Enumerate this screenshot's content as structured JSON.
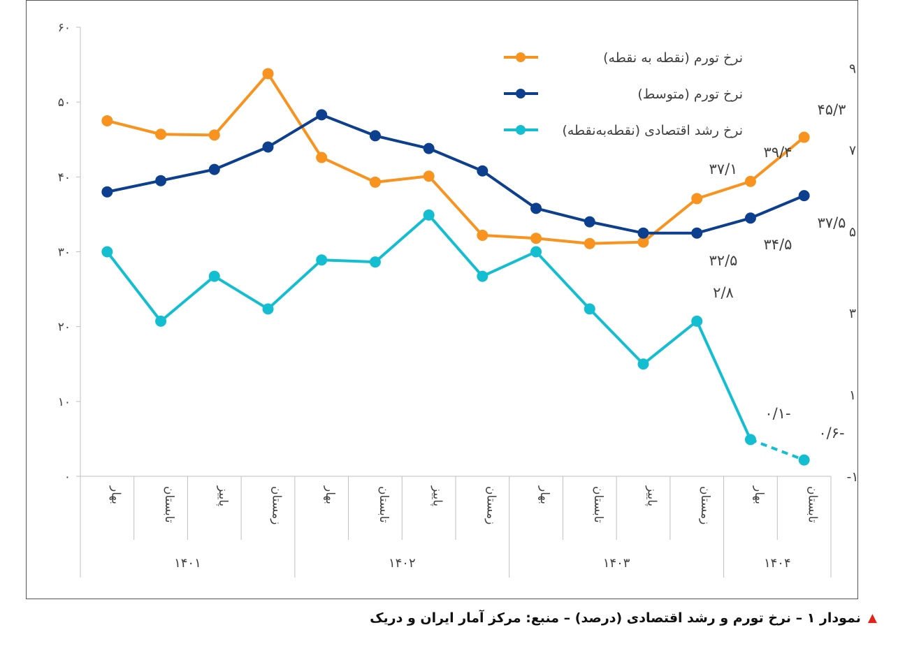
{
  "caption": "نمودار ۱ – نرخ تورم و رشد اقتصادی (درصد) – منبع: مرکز آمار ایران و دریک",
  "caption_marker": "▲",
  "chart_data": {
    "type": "line",
    "title": "",
    "categories": [
      "بهار",
      "تابستان",
      "پاییز",
      "زمستان",
      "بهار",
      "تابستان",
      "پاییز",
      "زمستان",
      "بهار",
      "تابستان",
      "پاییز",
      "زمستان",
      "بهار",
      "تابستان"
    ],
    "groups": [
      {
        "label": "۱۴۰۱",
        "start": 0,
        "end": 3
      },
      {
        "label": "۱۴۰۲",
        "start": 4,
        "end": 7
      },
      {
        "label": "۱۴۰۳",
        "start": 8,
        "end": 11
      },
      {
        "label": "۱۴۰۴",
        "start": 12,
        "end": 13
      }
    ],
    "left_axis": {
      "min": 0,
      "max": 60,
      "ticks": [
        "۰",
        "۱۰",
        "۲۰",
        "۳۰",
        "۴۰",
        "۵۰",
        "۶۰"
      ]
    },
    "right_axis": {
      "min": -1,
      "max": 10,
      "ticks": [
        "-۱",
        "۱",
        "۳",
        "۵",
        "۷",
        "۹"
      ],
      "tick_values": [
        -1,
        1,
        3,
        5,
        7,
        9
      ]
    },
    "series": [
      {
        "name": "نرخ تورم (نقطه به نقطه)",
        "color": "#f7931e",
        "axis": "left",
        "values": [
          47.5,
          45.7,
          45.6,
          53.8,
          42.6,
          39.3,
          40.1,
          32.2,
          31.8,
          31.1,
          31.3,
          37.1,
          39.4,
          45.3
        ]
      },
      {
        "name": "نرخ تورم (متوسط)",
        "color": "#0d3f8f",
        "axis": "left",
        "values": [
          38.0,
          39.5,
          41.0,
          44.0,
          48.3,
          45.5,
          43.8,
          40.8,
          35.8,
          34.0,
          32.5,
          32.5,
          34.5,
          37.5
        ]
      },
      {
        "name": "نرخ رشد اقتصادی (نقطه‌به‌نقطه)",
        "color": "#14bed1",
        "axis": "right",
        "values": [
          4.5,
          2.8,
          3.9,
          3.1,
          4.3,
          4.25,
          5.4,
          3.9,
          4.5,
          3.1,
          1.75,
          2.8,
          -0.1,
          -0.6
        ],
        "dashed_from": 12
      }
    ],
    "data_labels": [
      {
        "text": "۳۷/۱"
      },
      {
        "text": "۳۹/۴"
      },
      {
        "text": "۴۵/۳"
      },
      {
        "text": "۳۲/۵"
      },
      {
        "text": "۳۴/۵"
      },
      {
        "text": "۳۷/۵"
      },
      {
        "text": "۲/۸"
      },
      {
        "text": "۰/۱-"
      },
      {
        "text": "۰/۶-"
      }
    ]
  }
}
